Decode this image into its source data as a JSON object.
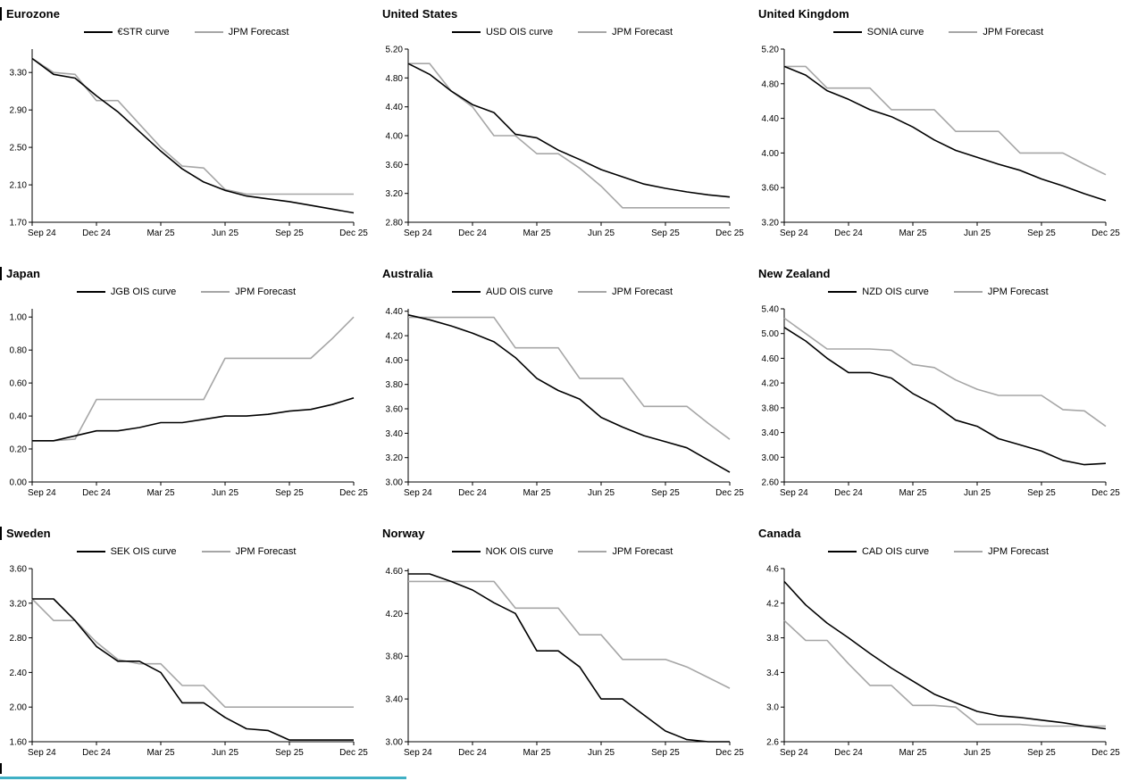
{
  "colors": {
    "market_line": "#000000",
    "forecast_line": "#a6a6a6",
    "axis": "#000000",
    "bottom_accent": "#3fb0c5"
  },
  "x_axis": {
    "labels": [
      "Sep 24",
      "Dec 24",
      "Mar 25",
      "Jun 25",
      "Sep 25",
      "Dec 25"
    ],
    "tick_indices": [
      0,
      3,
      6,
      9,
      12,
      15
    ]
  },
  "chart_data": [
    {
      "type": "line",
      "title": "Eurozone",
      "ylim": [
        1.7,
        3.55
      ],
      "ytick_values": [
        3.3,
        2.9,
        2.5,
        2.1,
        1.7
      ],
      "ytick_labels": [
        "3.30",
        "2.90",
        "2.50",
        "2.10",
        "1.70"
      ],
      "legend_position": "top",
      "series": [
        {
          "name": "€STR curve",
          "color": "#000000",
          "values": [
            3.45,
            3.28,
            3.24,
            3.05,
            2.88,
            2.67,
            2.46,
            2.27,
            2.13,
            2.04,
            1.98,
            1.95,
            1.92,
            1.88,
            1.84,
            1.8
          ]
        },
        {
          "name": "JPM Forecast",
          "color": "#a6a6a6",
          "values": [
            3.45,
            3.3,
            3.28,
            3.0,
            3.0,
            2.75,
            2.5,
            2.3,
            2.28,
            2.05,
            2.0,
            2.0,
            2.0,
            2.0,
            2.0,
            2.0
          ]
        }
      ]
    },
    {
      "type": "line",
      "title": "United States",
      "ylim": [
        2.8,
        5.2
      ],
      "ytick_values": [
        5.2,
        4.8,
        4.4,
        4.0,
        3.6,
        3.2,
        2.8
      ],
      "ytick_labels": [
        "5.20",
        "4.80",
        "4.40",
        "4.00",
        "3.60",
        "3.20",
        "2.80"
      ],
      "legend_position": "top",
      "series": [
        {
          "name": "USD OIS curve",
          "color": "#000000",
          "values": [
            5.0,
            4.85,
            4.62,
            4.43,
            4.32,
            4.02,
            3.97,
            3.8,
            3.67,
            3.53,
            3.43,
            3.33,
            3.27,
            3.22,
            3.18,
            3.15
          ]
        },
        {
          "name": "JPM Forecast",
          "color": "#a6a6a6",
          "values": [
            5.0,
            5.0,
            4.62,
            4.4,
            4.0,
            4.0,
            3.75,
            3.75,
            3.55,
            3.3,
            3.0,
            3.0,
            3.0,
            3.0,
            3.0,
            3.0
          ]
        }
      ]
    },
    {
      "type": "line",
      "title": "United Kingdom",
      "ylim": [
        3.2,
        5.2
      ],
      "ytick_values": [
        5.2,
        4.8,
        4.4,
        4.0,
        3.6,
        3.2
      ],
      "ytick_labels": [
        "5.20",
        "4.80",
        "4.40",
        "4.00",
        "3.60",
        "3.20"
      ],
      "legend_position": "top",
      "series": [
        {
          "name": "SONIA curve",
          "color": "#000000",
          "values": [
            5.0,
            4.9,
            4.72,
            4.62,
            4.5,
            4.42,
            4.3,
            4.15,
            4.03,
            3.95,
            3.87,
            3.8,
            3.7,
            3.62,
            3.53,
            3.45
          ]
        },
        {
          "name": "JPM Forecast",
          "color": "#a6a6a6",
          "values": [
            5.0,
            5.0,
            4.75,
            4.75,
            4.75,
            4.5,
            4.5,
            4.5,
            4.25,
            4.25,
            4.25,
            4.0,
            4.0,
            4.0,
            3.87,
            3.75
          ]
        }
      ]
    },
    {
      "type": "line",
      "title": "Japan",
      "ylim": [
        0.0,
        1.05
      ],
      "ytick_values": [
        1.0,
        0.8,
        0.6,
        0.4,
        0.2,
        0.0
      ],
      "ytick_labels": [
        "1.00",
        "0.80",
        "0.60",
        "0.40",
        "0.20",
        "0.00"
      ],
      "legend_position": "top",
      "series": [
        {
          "name": "JGB OIS curve",
          "color": "#000000",
          "values": [
            0.25,
            0.25,
            0.28,
            0.31,
            0.31,
            0.33,
            0.36,
            0.36,
            0.38,
            0.4,
            0.4,
            0.41,
            0.43,
            0.44,
            0.47,
            0.51
          ]
        },
        {
          "name": "JPM Forecast",
          "color": "#a6a6a6",
          "values": [
            0.25,
            0.25,
            0.26,
            0.5,
            0.5,
            0.5,
            0.5,
            0.5,
            0.5,
            0.75,
            0.75,
            0.75,
            0.75,
            0.75,
            0.87,
            1.0
          ]
        }
      ]
    },
    {
      "type": "line",
      "title": "Australia",
      "ylim": [
        3.0,
        4.42
      ],
      "ytick_values": [
        4.4,
        4.2,
        4.0,
        3.8,
        3.6,
        3.4,
        3.2,
        3.0
      ],
      "ytick_labels": [
        "4.40",
        "4.20",
        "4.00",
        "3.80",
        "3.60",
        "3.40",
        "3.20",
        "3.00"
      ],
      "legend_position": "top",
      "series": [
        {
          "name": "AUD OIS curve",
          "color": "#000000",
          "values": [
            4.37,
            4.33,
            4.28,
            4.22,
            4.15,
            4.02,
            3.85,
            3.75,
            3.68,
            3.53,
            3.45,
            3.38,
            3.33,
            3.28,
            3.18,
            3.08
          ]
        },
        {
          "name": "JPM Forecast",
          "color": "#a6a6a6",
          "values": [
            4.35,
            4.35,
            4.35,
            4.35,
            4.35,
            4.1,
            4.1,
            4.1,
            3.85,
            3.85,
            3.85,
            3.62,
            3.62,
            3.62,
            3.48,
            3.35
          ]
        }
      ]
    },
    {
      "type": "line",
      "title": "New Zealand",
      "ylim": [
        2.6,
        5.4
      ],
      "ytick_values": [
        5.4,
        5.0,
        4.6,
        4.2,
        3.8,
        3.4,
        3.0,
        2.6
      ],
      "ytick_labels": [
        "5.40",
        "5.00",
        "4.60",
        "4.20",
        "3.80",
        "3.40",
        "3.00",
        "2.60"
      ],
      "legend_position": "top",
      "series": [
        {
          "name": "NZD OIS curve",
          "color": "#000000",
          "values": [
            5.1,
            4.88,
            4.6,
            4.37,
            4.37,
            4.28,
            4.03,
            3.85,
            3.6,
            3.5,
            3.3,
            3.2,
            3.1,
            2.95,
            2.88,
            2.9
          ]
        },
        {
          "name": "JPM Forecast",
          "color": "#a6a6a6",
          "values": [
            5.25,
            5.0,
            4.75,
            4.75,
            4.75,
            4.73,
            4.5,
            4.45,
            4.25,
            4.1,
            4.0,
            4.0,
            4.0,
            3.77,
            3.75,
            3.5
          ]
        }
      ]
    },
    {
      "type": "line",
      "title": "Sweden",
      "ylim": [
        1.6,
        3.6
      ],
      "ytick_values": [
        3.6,
        3.2,
        2.8,
        2.4,
        2.0,
        1.6
      ],
      "ytick_labels": [
        "3.60",
        "3.20",
        "2.80",
        "2.40",
        "2.00",
        "1.60"
      ],
      "legend_position": "top",
      "series": [
        {
          "name": "SEK OIS curve",
          "color": "#000000",
          "values": [
            3.25,
            3.25,
            3.0,
            2.7,
            2.53,
            2.53,
            2.4,
            2.05,
            2.05,
            1.88,
            1.75,
            1.73,
            1.62,
            1.62,
            1.62,
            1.62
          ]
        },
        {
          "name": "JPM Forecast",
          "color": "#a6a6a6",
          "values": [
            3.25,
            3.0,
            3.0,
            2.75,
            2.55,
            2.5,
            2.5,
            2.25,
            2.25,
            2.0,
            2.0,
            2.0,
            2.0,
            2.0,
            2.0,
            2.0
          ]
        }
      ]
    },
    {
      "type": "line",
      "title": "Norway",
      "ylim": [
        3.0,
        4.62
      ],
      "ytick_values": [
        4.6,
        4.2,
        3.8,
        3.4,
        3.0
      ],
      "ytick_labels": [
        "4.60",
        "4.20",
        "3.80",
        "3.40",
        "3.00"
      ],
      "legend_position": "top",
      "series": [
        {
          "name": "NOK OIS curve",
          "color": "#000000",
          "values": [
            4.57,
            4.57,
            4.5,
            4.42,
            4.3,
            4.2,
            3.85,
            3.85,
            3.7,
            3.4,
            3.4,
            3.25,
            3.1,
            3.02,
            3.0,
            3.0
          ]
        },
        {
          "name": "JPM Forecast",
          "color": "#a6a6a6",
          "values": [
            4.5,
            4.5,
            4.5,
            4.5,
            4.5,
            4.25,
            4.25,
            4.25,
            4.0,
            4.0,
            3.77,
            3.77,
            3.77,
            3.7,
            3.6,
            3.5
          ]
        }
      ]
    },
    {
      "type": "line",
      "title": "Canada",
      "ylim": [
        2.6,
        4.6
      ],
      "ytick_values": [
        4.6,
        4.2,
        3.8,
        3.4,
        3.0,
        2.6
      ],
      "ytick_labels": [
        "4.6",
        "4.2",
        "3.8",
        "3.4",
        "3.0",
        "2.6"
      ],
      "legend_position": "top",
      "series": [
        {
          "name": "CAD OIS curve",
          "color": "#000000",
          "values": [
            4.45,
            4.18,
            3.97,
            3.8,
            3.62,
            3.45,
            3.3,
            3.15,
            3.05,
            2.95,
            2.9,
            2.88,
            2.85,
            2.82,
            2.78,
            2.75
          ]
        },
        {
          "name": "JPM Forecast",
          "color": "#a6a6a6",
          "values": [
            4.0,
            3.77,
            3.77,
            3.5,
            3.25,
            3.25,
            3.02,
            3.02,
            3.0,
            2.8,
            2.8,
            2.8,
            2.78,
            2.78,
            2.78,
            2.78
          ]
        }
      ]
    }
  ]
}
